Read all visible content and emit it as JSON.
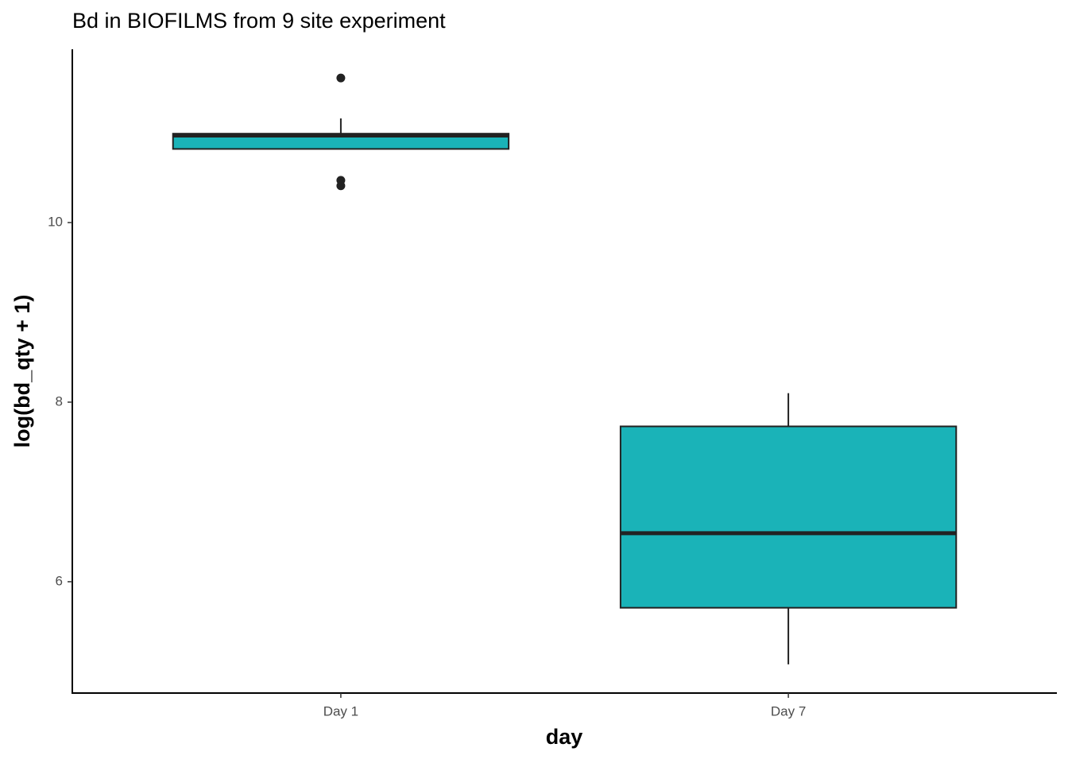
{
  "chart_data": {
    "type": "box",
    "title": "Bd in BIOFILMS from 9 site experiment",
    "x_label": "day",
    "y_label": "log(bd_qty + 1)",
    "categories": [
      "Day 1",
      "Day 7"
    ],
    "boxes": [
      {
        "min": 10.82,
        "q1": 10.82,
        "median": 10.97,
        "q3": 10.99,
        "max": 11.16,
        "outliers": [
          11.61,
          10.47,
          10.41
        ]
      },
      {
        "min": 5.08,
        "q1": 5.71,
        "median": 6.54,
        "q3": 7.73,
        "max": 8.1,
        "outliers": []
      }
    ],
    "color": "#1ab3b8",
    "ylim": [
      4.76,
      11.93
    ],
    "yticks": [
      6,
      8,
      10
    ],
    "grid": false
  }
}
